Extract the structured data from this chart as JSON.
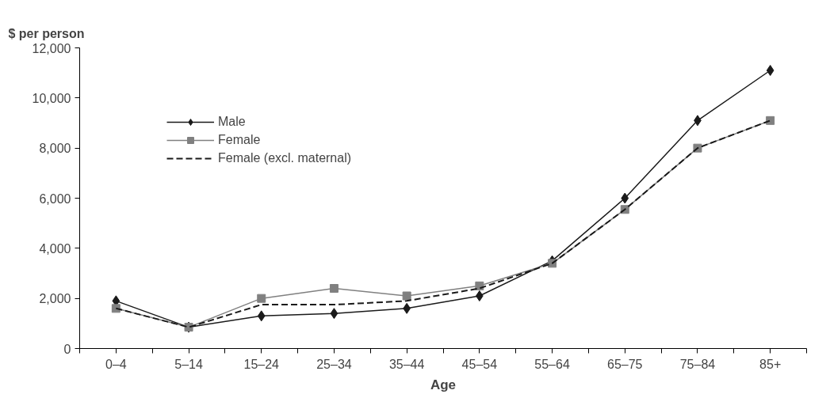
{
  "chart_data": {
    "type": "line",
    "ylabel": "$ per person",
    "xlabel": "Age",
    "categories": [
      "0–4",
      "5–14",
      "15–24",
      "25–34",
      "35–44",
      "45–54",
      "55–64",
      "65–75",
      "75–84",
      "85+"
    ],
    "ylim": [
      0,
      12000
    ],
    "yticks": [
      {
        "value": 0,
        "label": "0"
      },
      {
        "value": 2000,
        "label": "2,000"
      },
      {
        "value": 4000,
        "label": "4,000"
      },
      {
        "value": 6000,
        "label": "6,000"
      },
      {
        "value": 8000,
        "label": "8,000"
      },
      {
        "value": 10000,
        "label": "10,000"
      },
      {
        "value": 12000,
        "label": "12,000"
      }
    ],
    "grid": false,
    "legend": "top left",
    "series": [
      {
        "name": "Male",
        "color": "#1a1a1a",
        "marker": "diamond",
        "line_style": "solid",
        "values": [
          1900,
          850,
          1300,
          1400,
          1600,
          2100,
          3500,
          6000,
          9100,
          11100
        ]
      },
      {
        "name": "Female",
        "color": "#808080",
        "marker": "square",
        "line_style": "solid",
        "values": [
          1600,
          850,
          2000,
          2400,
          2100,
          2500,
          3400,
          5550,
          8000,
          9100
        ]
      },
      {
        "name": "Female (excl. maternal)",
        "color": "#1a1a1a",
        "marker": "none",
        "line_style": "dashed",
        "values": [
          1600,
          850,
          1750,
          1750,
          1900,
          2400,
          3400,
          5550,
          8000,
          9100
        ]
      }
    ]
  }
}
